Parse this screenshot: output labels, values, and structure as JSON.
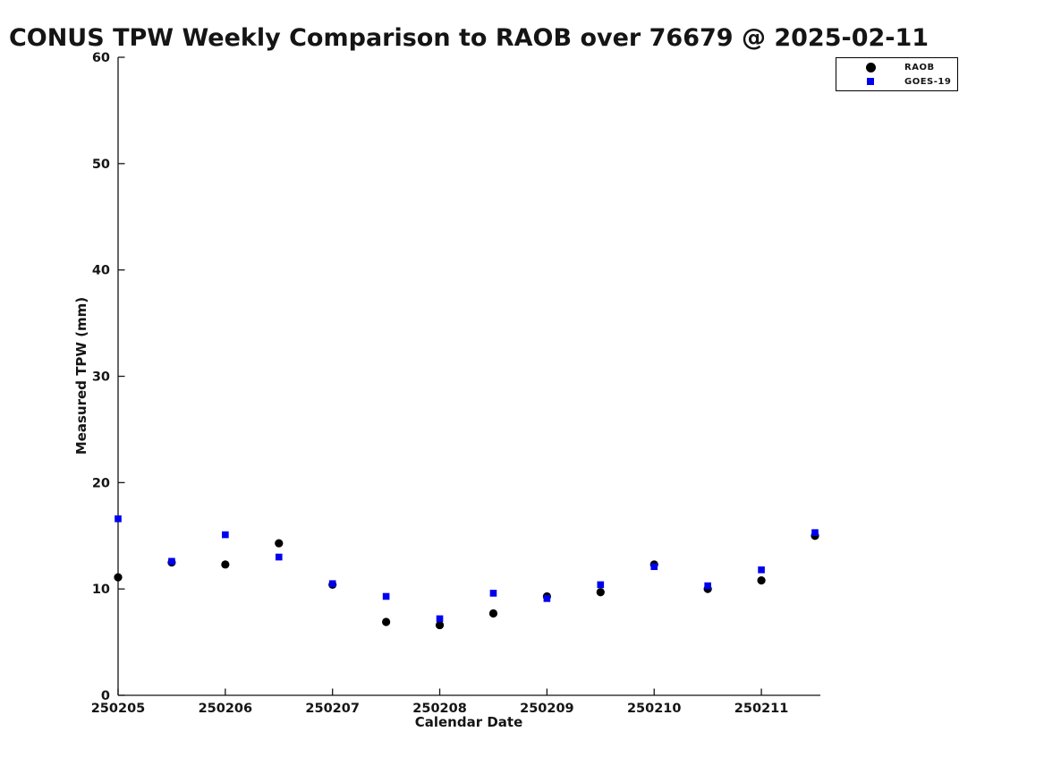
{
  "chart_data": {
    "type": "scatter",
    "title": "CONUS TPW Weekly Comparison to RAOB over 76679 @ 2025-02-11",
    "xlabel": "Calendar Date",
    "ylabel": "Measured TPW (mm)",
    "ylim": [
      0,
      60
    ],
    "yticks": [
      0,
      10,
      20,
      30,
      40,
      50,
      60
    ],
    "xticks": [
      250205,
      250206,
      250207,
      250208,
      250209,
      250210,
      250211
    ],
    "xtick_labels": [
      "250205",
      "250206",
      "250207",
      "250208",
      "250209",
      "250210",
      "250211"
    ],
    "xlim": [
      250205,
      250211.55
    ],
    "grid": false,
    "legend_position": "top-right",
    "x": [
      250205.0,
      250205.5,
      250206.0,
      250206.5,
      250207.0,
      250207.5,
      250208.0,
      250208.5,
      250209.0,
      250209.5,
      250210.0,
      250210.5,
      250211.0,
      250211.5
    ],
    "series": [
      {
        "name": "RAOB",
        "marker": "circle",
        "color": "#000000",
        "values": [
          11.1,
          12.5,
          12.3,
          14.3,
          10.4,
          6.9,
          6.6,
          7.7,
          9.3,
          9.7,
          12.3,
          10.0,
          10.8,
          15.0
        ]
      },
      {
        "name": "GOES-19",
        "marker": "square",
        "color": "#0000EE",
        "values": [
          16.6,
          12.6,
          15.1,
          13.0,
          10.5,
          9.3,
          7.2,
          9.6,
          9.1,
          10.4,
          12.1,
          10.3,
          11.8,
          15.3
        ]
      }
    ],
    "axis_color": "#151515",
    "background_color": "#ffffff"
  }
}
